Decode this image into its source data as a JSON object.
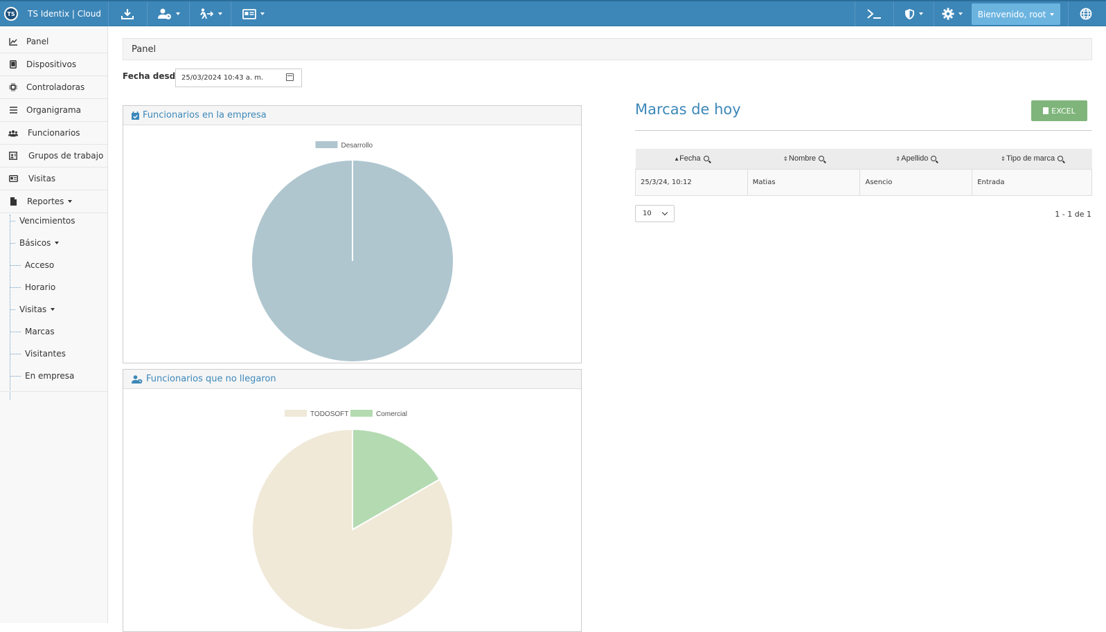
{
  "app": {
    "title": "TS Identix | Cloud",
    "logo_text": "TS",
    "welcome": "Bienvenido, root"
  },
  "topbar": {
    "icons": [
      "download-icon",
      "user-clock-icon",
      "person-exit-icon",
      "id-card-icon",
      "terminal-icon",
      "shield-icon",
      "gear-icon",
      "globe-icon"
    ]
  },
  "sidebar": {
    "items": [
      {
        "label": "Panel",
        "icon": "chart-line-icon"
      },
      {
        "label": "Dispositivos",
        "icon": "tablet-icon"
      },
      {
        "label": "Controladoras",
        "icon": "chip-icon"
      },
      {
        "label": "Organigrama",
        "icon": "list-icon"
      },
      {
        "label": "Funcionarios",
        "icon": "users-icon"
      },
      {
        "label": "Grupos de trabajo",
        "icon": "group-icon"
      },
      {
        "label": "Visitas",
        "icon": "id-badge-icon"
      },
      {
        "label": "Reportes",
        "icon": "file-icon"
      }
    ],
    "sub": {
      "vencimientos": "Vencimientos",
      "basicos": "Básicos",
      "acceso": "Acceso",
      "horario": "Horario",
      "visitas": "Visitas",
      "marcas": "Marcas",
      "visitantes": "Visitantes",
      "en_empresa": "En empresa"
    }
  },
  "main": {
    "breadcrumb": "Panel",
    "date_label": "Fecha desde",
    "date_value": "25/03/2024 10:43 a. m."
  },
  "panels": {
    "empresa_title": "Funcionarios en la empresa",
    "no_llegaron_title": "Funcionarios que no llegaron"
  },
  "chart_data": [
    {
      "type": "pie",
      "title": "Funcionarios en la empresa",
      "categories": [
        "Desarrollo"
      ],
      "values": [
        1
      ],
      "colors": [
        "#afc6cf"
      ]
    },
    {
      "type": "pie",
      "title": "Funcionarios que no llegaron",
      "categories": [
        "TODOSOFT",
        "Comercial"
      ],
      "values": [
        5,
        1
      ],
      "colors": [
        "#f0e9d8",
        "#b4dab1"
      ]
    }
  ],
  "marks": {
    "title": "Marcas de hoy",
    "excel_label": "EXCEL",
    "columns": [
      "Fecha",
      "Nombre",
      "Apellido",
      "Tipo de marca"
    ],
    "rows": [
      {
        "fecha": "25/3/24, 10:12",
        "nombre": "Matias",
        "apellido": "Asencio",
        "tipo": "Entrada"
      }
    ],
    "page_size": "10",
    "pager": "1 - 1 de 1"
  },
  "colors": {
    "topbar": "#3d86b8",
    "accent": "#3c88b9",
    "excel": "#7fb57a",
    "welcome": "#6cb4e0"
  }
}
